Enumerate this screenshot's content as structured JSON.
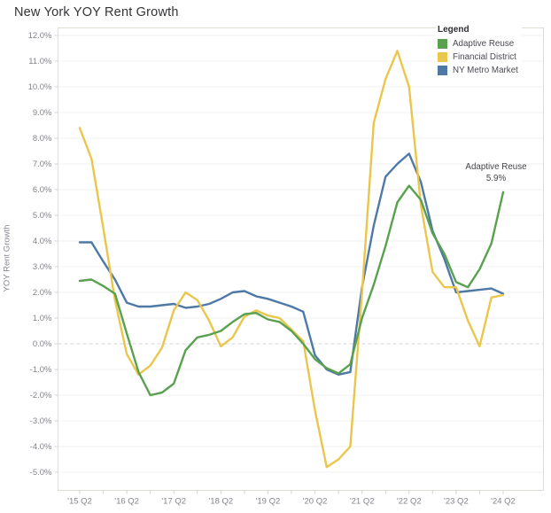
{
  "title": "New York YOY Rent Growth",
  "legend": {
    "title": "Legend",
    "items": [
      {
        "label": "Adaptive Reuse",
        "color": "#59a14f"
      },
      {
        "label": "Financial District",
        "color": "#eac64c"
      },
      {
        "label": "NY Metro Market",
        "color": "#4e79a7"
      }
    ]
  },
  "annotation": {
    "lines": [
      "Adaptive Reuse",
      "5.9%"
    ]
  },
  "chart_data": {
    "type": "line",
    "title": "New York YOY Rent Growth",
    "xlabel": "",
    "ylabel": "YOY Rent Growth",
    "ylim": [
      -5,
      12
    ],
    "y_tick_step": 1,
    "y_tick_labels": [
      "12.0%",
      "11.0%",
      "10.0%",
      "9.0%",
      "8.0%",
      "7.0%",
      "6.0%",
      "5.0%",
      "4.0%",
      "3.0%",
      "2.0%",
      "1.0%",
      "0.0%",
      "-1.0%",
      "-2.0%",
      "-3.0%",
      "-4.0%",
      "-5.0%"
    ],
    "x_tick_labels_shown": [
      "'15 Q2",
      "'16 Q2",
      "'17 Q2",
      "'18 Q2",
      "'19 Q2",
      "'20 Q2",
      "'21 Q2",
      "'22 Q2",
      "'23 Q2",
      "'24 Q2"
    ],
    "grid": "horizontal 1% gridlines, 0% line dashed",
    "legend_position": "top-right",
    "x": [
      "'15 Q2",
      "'15 Q3",
      "'15 Q4",
      "'16 Q1",
      "'16 Q2",
      "'16 Q3",
      "'16 Q4",
      "'17 Q1",
      "'17 Q2",
      "'17 Q3",
      "'17 Q4",
      "'18 Q1",
      "'18 Q2",
      "'18 Q3",
      "'18 Q4",
      "'19 Q1",
      "'19 Q2",
      "'19 Q3",
      "'19 Q4",
      "'20 Q1",
      "'20 Q2",
      "'20 Q3",
      "'20 Q4",
      "'21 Q1",
      "'21 Q2",
      "'21 Q3",
      "'21 Q4",
      "'22 Q1",
      "'22 Q2",
      "'22 Q3",
      "'22 Q4",
      "'23 Q1",
      "'23 Q2",
      "'23 Q3",
      "'23 Q4",
      "'24 Q1",
      "'24 Q2"
    ],
    "series": [
      {
        "name": "NY Metro Market",
        "color": "#4e79a7",
        "values": [
          3.95,
          3.95,
          3.2,
          2.5,
          1.6,
          1.45,
          1.45,
          1.5,
          1.55,
          1.4,
          1.45,
          1.55,
          1.75,
          2.0,
          2.05,
          1.85,
          1.75,
          1.6,
          1.45,
          1.25,
          -0.45,
          -1.0,
          -1.2,
          -1.1,
          2.2,
          4.6,
          6.5,
          7.0,
          7.4,
          6.3,
          4.4,
          3.3,
          2.0,
          2.05,
          2.1,
          2.15,
          1.95
        ]
      },
      {
        "name": "Financial District",
        "color": "#eac64c",
        "values": [
          8.4,
          7.2,
          4.5,
          1.7,
          -0.4,
          -1.2,
          -0.85,
          -0.15,
          1.3,
          2.0,
          1.7,
          0.9,
          -0.1,
          0.25,
          1.05,
          1.3,
          1.1,
          1.0,
          0.55,
          0.1,
          -2.6,
          -4.8,
          -4.5,
          -4.0,
          2.0,
          8.6,
          10.3,
          11.4,
          10.0,
          5.4,
          2.8,
          2.2,
          2.2,
          0.9,
          -0.1,
          1.8,
          1.9
        ]
      },
      {
        "name": "Adaptive Reuse",
        "color": "#59a14f",
        "values": [
          2.45,
          2.5,
          2.25,
          1.95,
          0.4,
          -1.1,
          -2.0,
          -1.9,
          -1.55,
          -0.25,
          0.25,
          0.35,
          0.5,
          0.85,
          1.15,
          1.2,
          0.95,
          0.85,
          0.5,
          0.0,
          -0.6,
          -0.95,
          -1.15,
          -0.8,
          1.0,
          2.3,
          3.8,
          5.5,
          6.15,
          5.6,
          4.3,
          3.5,
          2.4,
          2.2,
          2.9,
          3.9,
          5.9
        ]
      }
    ],
    "annotation": {
      "text": "Adaptive Reuse 5.9%",
      "attached_to": "last point of Adaptive Reuse"
    }
  }
}
